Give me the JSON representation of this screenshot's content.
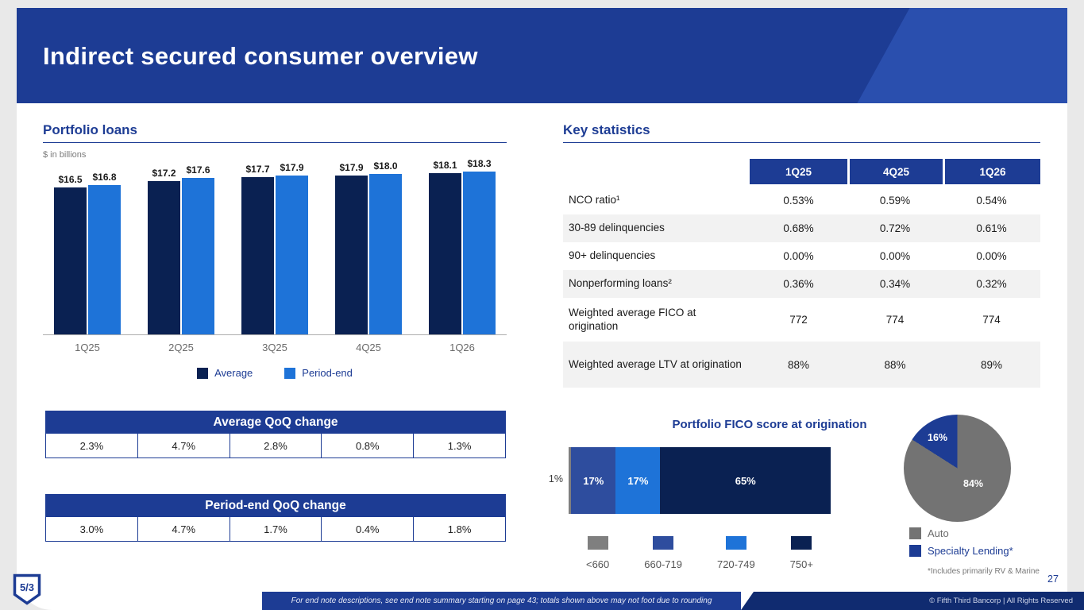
{
  "slide": {
    "title": "Indirect secured consumer overview",
    "page_number": "27",
    "footer_note": "For end note descriptions, see end note summary starting on page 43; totals shown above may not foot due to rounding",
    "copyright": "© Fifth Third Bancorp | All Rights Reserved",
    "logo_text": "5/3"
  },
  "sections": {
    "portfolio_loans": {
      "title": "Portfolio loans",
      "units": "$ in billions"
    },
    "avg_qoq": {
      "title": "Average QoQ change",
      "values": [
        "2.3%",
        "4.7%",
        "2.8%",
        "0.8%",
        "1.3%"
      ]
    },
    "pe_qoq": {
      "title": "Period-end QoQ change",
      "values": [
        "3.0%",
        "4.7%",
        "1.7%",
        "0.4%",
        "1.8%"
      ]
    },
    "key_statistics": {
      "title": "Key statistics",
      "columns": [
        "1Q25",
        "4Q25",
        "1Q26"
      ],
      "rows": [
        {
          "label": "NCO ratio¹",
          "values": [
            "0.53%",
            "0.59%",
            "0.54%"
          ]
        },
        {
          "label": "30-89 delinquencies",
          "values": [
            "0.68%",
            "0.72%",
            "0.61%"
          ]
        },
        {
          "label": "90+ delinquencies",
          "values": [
            "0.00%",
            "0.00%",
            "0.00%"
          ]
        },
        {
          "label": "Nonperforming loans²",
          "values": [
            "0.36%",
            "0.34%",
            "0.32%"
          ]
        },
        {
          "label": "Weighted average FICO at origination",
          "values": [
            "772",
            "774",
            "774"
          ]
        },
        {
          "label": "Weighted average LTV at origination",
          "values": [
            "88%",
            "88%",
            "89%"
          ]
        }
      ]
    }
  },
  "chart_data": [
    {
      "type": "bar",
      "title": "Portfolio loans",
      "ylabel": "$ in billions",
      "categories": [
        "1Q25",
        "2Q25",
        "3Q25",
        "4Q25",
        "1Q26"
      ],
      "series": [
        {
          "name": "Average",
          "color": "#0a2152",
          "values": [
            16.5,
            17.2,
            17.7,
            17.9,
            18.1
          ],
          "labels": [
            "$16.5",
            "$17.2",
            "$17.7",
            "$17.9",
            "$18.1"
          ]
        },
        {
          "name": "Period-end",
          "color": "#1e73d8",
          "values": [
            16.8,
            17.6,
            17.9,
            18.0,
            18.3
          ],
          "labels": [
            "$16.8",
            "$17.6",
            "$17.9",
            "$18.0",
            "$18.3"
          ]
        }
      ],
      "ylim": [
        0,
        19
      ],
      "grid": false,
      "legend_position": "bottom"
    },
    {
      "type": "bar",
      "subtype": "stacked-horizontal",
      "title": "Portfolio FICO score at origination",
      "categories": [
        "<660",
        "660-719",
        "720-749",
        "750+"
      ],
      "values": [
        1,
        17,
        17,
        65
      ],
      "labels": [
        "1%",
        "17%",
        "17%",
        "65%"
      ],
      "colors": [
        "#7f7f7f",
        "#2e4d9e",
        "#1e73d8",
        "#0a2152"
      ],
      "legend_position": "bottom"
    },
    {
      "type": "pie",
      "categories": [
        "Auto",
        "Specialty Lending*"
      ],
      "values": [
        84,
        16
      ],
      "labels": [
        "84%",
        "16%"
      ],
      "colors": [
        "#737373",
        "#1d3c94"
      ],
      "footnote": "*Includes primarily RV & Marine",
      "legend_position": "bottom"
    }
  ]
}
